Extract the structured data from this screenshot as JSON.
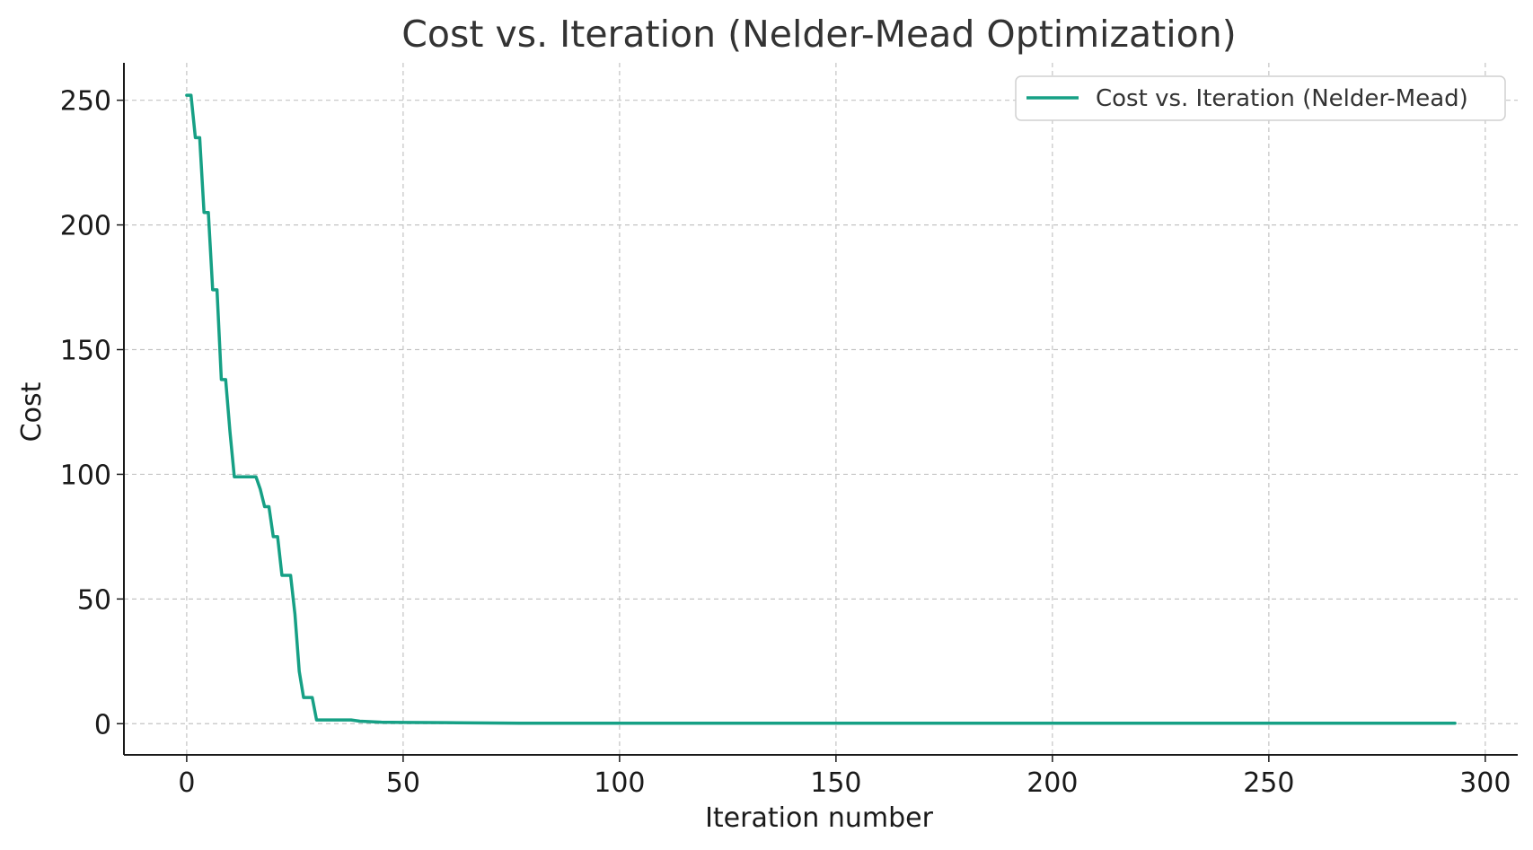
{
  "chart_data": {
    "type": "line",
    "title": "Cost vs. Iteration (Nelder-Mead Optimization)",
    "xlabel": "Iteration number",
    "ylabel": "Cost",
    "xlim": [
      -14.5,
      307.5
    ],
    "ylim": [
      -12.5,
      265
    ],
    "xticks": [
      0,
      50,
      100,
      150,
      200,
      250,
      300
    ],
    "yticks": [
      0,
      50,
      100,
      150,
      200,
      250
    ],
    "grid": true,
    "legend": {
      "position": "upper-right"
    },
    "series": [
      {
        "name": "Cost vs. Iteration (Nelder-Mead)",
        "color": "#16a085",
        "x": [
          0,
          1,
          2,
          3,
          4,
          5,
          6,
          7,
          8,
          9,
          10,
          11,
          12,
          13,
          14,
          15,
          16,
          17,
          18,
          19,
          20,
          21,
          22,
          23,
          24,
          25,
          26,
          27,
          28,
          29,
          30,
          31,
          32,
          35,
          38,
          40,
          45,
          50,
          60,
          77,
          100,
          150,
          200,
          250,
          293
        ],
        "y": [
          252,
          252,
          235,
          235,
          205,
          205,
          174,
          174,
          138,
          138,
          117,
          99,
          99,
          99,
          99,
          99,
          99,
          94,
          87,
          87,
          75,
          75,
          59.5,
          59.5,
          59.5,
          44,
          21,
          10.5,
          10.5,
          10.5,
          1.5,
          1.5,
          1.5,
          1.5,
          1.5,
          1,
          0.6,
          0.5,
          0.4,
          0.2,
          0.2,
          0.2,
          0.2,
          0.2,
          0.2
        ]
      }
    ]
  }
}
